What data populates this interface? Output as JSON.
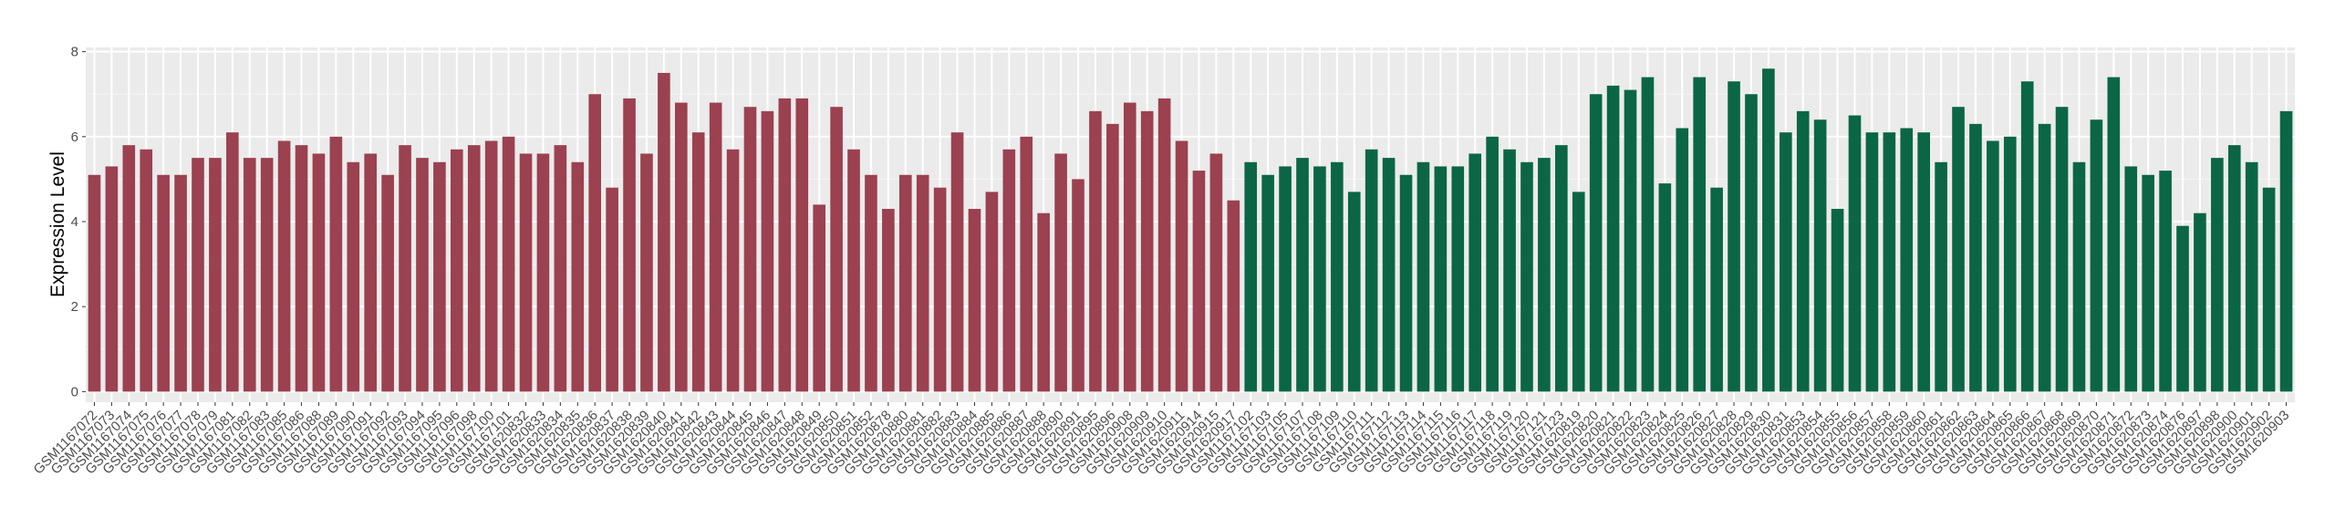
{
  "chart_data": {
    "type": "bar",
    "y_label": "Expression Level",
    "ylim": [
      -0.4,
      8.4
    ],
    "yticks": [
      0,
      2,
      4,
      6,
      8
    ],
    "grid": true,
    "series": [
      {
        "color": "#9b4150",
        "categories": [
          "GSM1167072",
          "GSM1167073",
          "GSM1167074",
          "GSM1167075",
          "GSM1167076",
          "GSM1167077",
          "GSM1167078",
          "GSM1167079",
          "GSM1167081",
          "GSM1167082",
          "GSM1167083",
          "GSM1167085",
          "GSM1167086",
          "GSM1167088",
          "GSM1167089",
          "GSM1167090",
          "GSM1167091",
          "GSM1167092",
          "GSM1167093",
          "GSM1167094",
          "GSM1167095",
          "GSM1167096",
          "GSM1167098",
          "GSM1167100",
          "GSM1167101",
          "GSM1620832",
          "GSM1620833",
          "GSM1620834",
          "GSM1620835",
          "GSM1620836",
          "GSM1620837",
          "GSM1620838",
          "GSM1620839",
          "GSM1620840",
          "GSM1620841",
          "GSM1620842",
          "GSM1620843",
          "GSM1620844",
          "GSM1620845",
          "GSM1620846",
          "GSM1620847",
          "GSM1620848",
          "GSM1620849",
          "GSM1620850",
          "GSM1620851",
          "GSM1620852",
          "GSM1620878",
          "GSM1620880",
          "GSM1620881",
          "GSM1620882",
          "GSM1620883",
          "GSM1620884",
          "GSM1620885",
          "GSM1620886",
          "GSM1620887",
          "GSM1620888",
          "GSM1620890",
          "GSM1620891",
          "GSM1620895",
          "GSM1620896",
          "GSM1620908",
          "GSM1620909",
          "GSM1620910",
          "GSM1620911",
          "GSM1620914",
          "GSM1620915",
          "GSM1620917"
        ],
        "values": [
          5.1,
          5.3,
          5.8,
          5.7,
          5.1,
          5.1,
          5.5,
          5.5,
          6.1,
          5.5,
          5.5,
          5.9,
          5.8,
          5.6,
          6.0,
          5.4,
          5.6,
          5.1,
          5.8,
          5.5,
          5.4,
          5.7,
          5.8,
          5.9,
          6.0,
          5.6,
          5.6,
          5.8,
          5.4,
          7.0,
          4.8,
          6.9,
          5.6,
          7.5,
          6.8,
          6.1,
          6.8,
          5.7,
          6.7,
          6.6,
          6.9,
          6.9,
          4.4,
          6.7,
          5.7,
          5.1,
          4.3,
          5.1,
          5.1,
          4.8,
          6.1,
          4.3,
          4.7,
          5.7,
          6.0,
          4.2,
          5.6,
          5.0,
          6.6,
          6.3,
          6.8,
          6.6,
          6.9,
          5.9,
          5.2,
          5.6,
          4.5
        ]
      },
      {
        "color": "#0b6645",
        "categories": [
          "GSM1167102",
          "GSM1167103",
          "GSM1167105",
          "GSM1167107",
          "GSM1167108",
          "GSM1167109",
          "GSM1167110",
          "GSM1167111",
          "GSM1167112",
          "GSM1167113",
          "GSM1167114",
          "GSM1167115",
          "GSM1167116",
          "GSM1167117",
          "GSM1167118",
          "GSM1167119",
          "GSM1167120",
          "GSM1167121",
          "GSM1167123",
          "GSM1620819",
          "GSM1620820",
          "GSM1620821",
          "GSM1620822",
          "GSM1620823",
          "GSM1620824",
          "GSM1620825",
          "GSM1620826",
          "GSM1620827",
          "GSM1620828",
          "GSM1620829",
          "GSM1620830",
          "GSM1620831",
          "GSM1620853",
          "GSM1620854",
          "GSM1620855",
          "GSM1620856",
          "GSM1620857",
          "GSM1620858",
          "GSM1620859",
          "GSM1620860",
          "GSM1620861",
          "GSM1620862",
          "GSM1620863",
          "GSM1620864",
          "GSM1620865",
          "GSM1620866",
          "GSM1620867",
          "GSM1620868",
          "GSM1620869",
          "GSM1620870",
          "GSM1620871",
          "GSM1620872",
          "GSM1620873",
          "GSM1620874",
          "GSM1620876",
          "GSM1620897",
          "GSM1620898",
          "GSM1620900",
          "GSM1620901",
          "GSM1620902",
          "GSM1620903"
        ],
        "values": [
          5.4,
          5.1,
          5.3,
          5.5,
          5.3,
          5.4,
          4.7,
          5.7,
          5.5,
          5.1,
          5.4,
          5.3,
          5.3,
          5.6,
          6.0,
          5.7,
          5.4,
          5.5,
          5.8,
          4.7,
          7.0,
          7.2,
          7.1,
          7.4,
          4.9,
          6.2,
          7.4,
          4.8,
          7.3,
          7.0,
          7.6,
          6.1,
          6.6,
          6.4,
          4.3,
          6.5,
          6.1,
          6.1,
          6.2,
          6.1,
          5.4,
          6.7,
          6.3,
          5.9,
          6.0,
          7.3,
          6.3,
          6.7,
          5.4,
          6.4,
          7.4,
          5.3,
          5.1,
          5.2,
          3.9,
          4.2,
          5.5,
          5.8,
          5.4,
          4.8,
          6.6
        ]
      }
    ]
  }
}
